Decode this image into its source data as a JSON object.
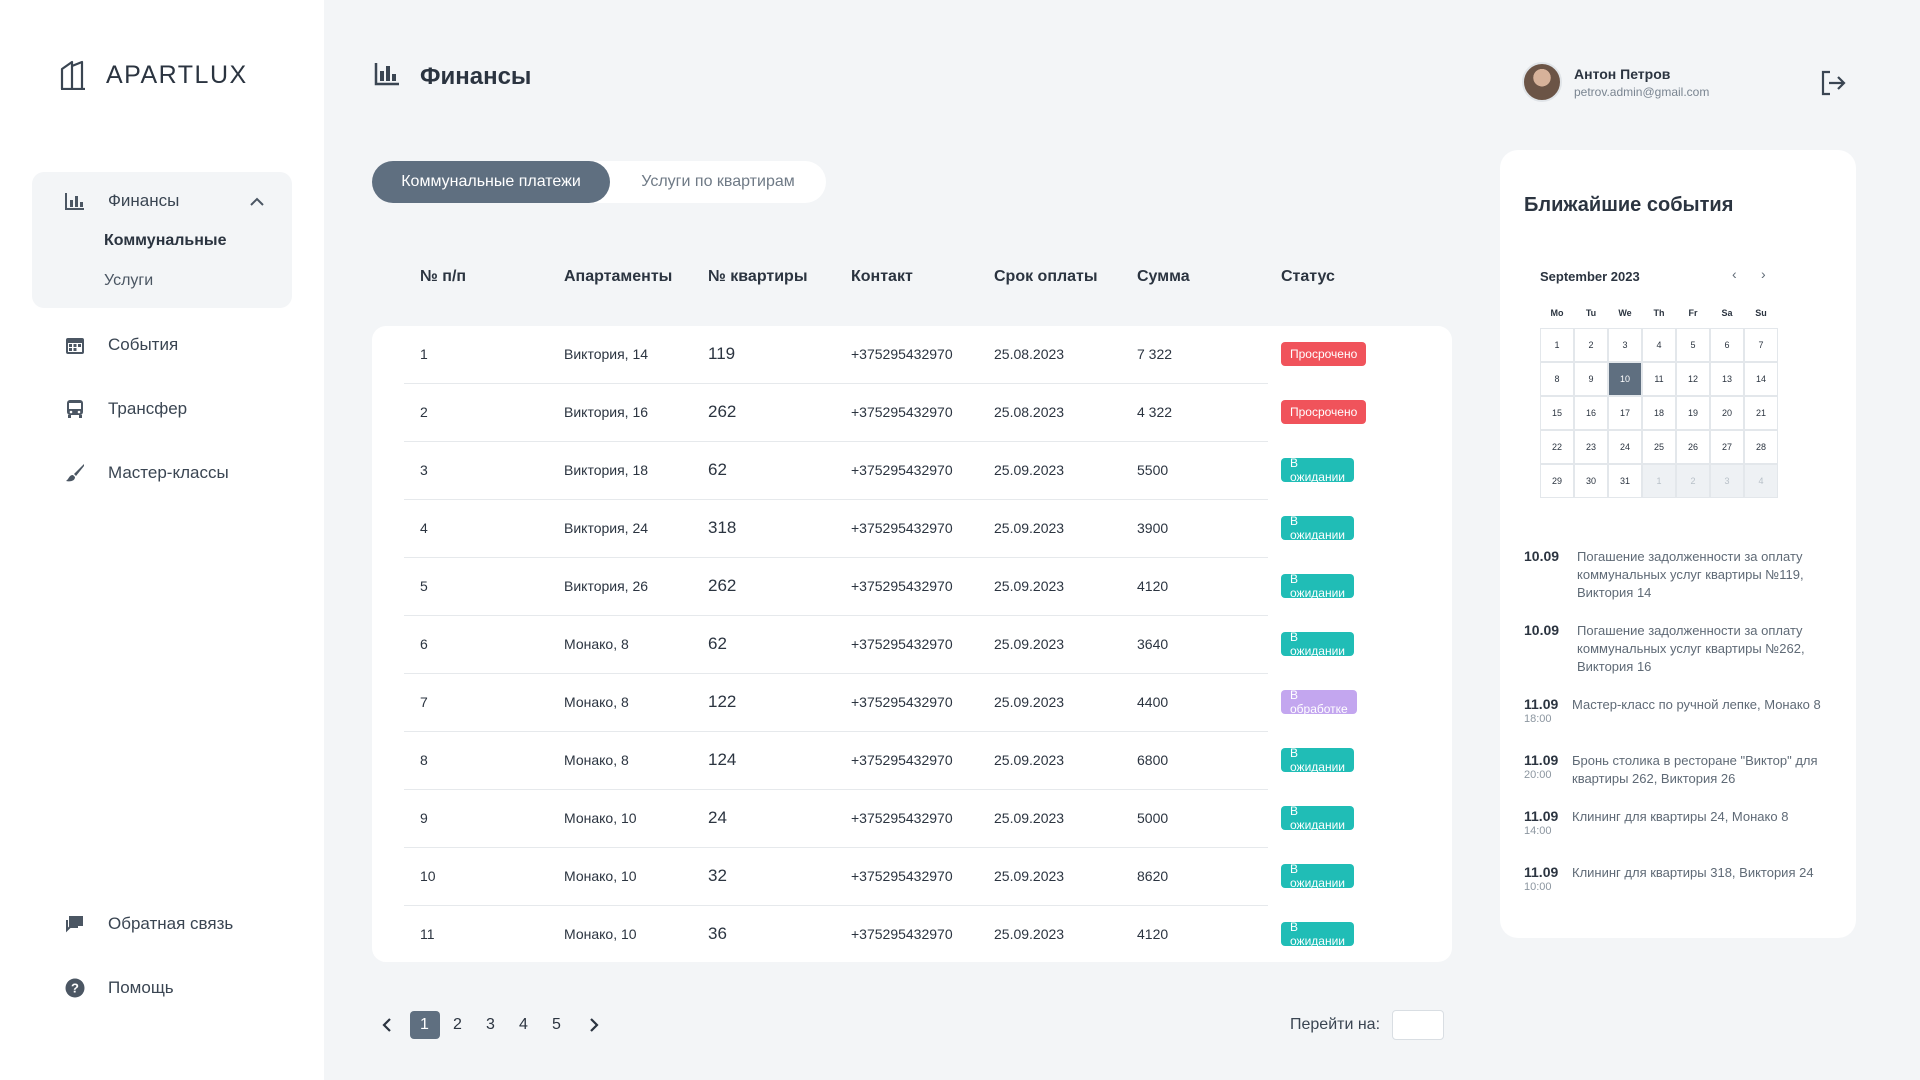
{
  "app": {
    "logo_text": "APARTLUX"
  },
  "sidebar": {
    "finance": {
      "label": "Финансы",
      "icon": "bar-chart-icon"
    },
    "finance_sub": [
      {
        "label": "Коммунальные",
        "active": true
      },
      {
        "label": "Услуги",
        "active": false
      }
    ],
    "items": [
      {
        "label": "События",
        "icon": "calendar-icon"
      },
      {
        "label": "Трансфер",
        "icon": "bus-icon"
      },
      {
        "label": "Мастер-классы",
        "icon": "brush-icon"
      }
    ],
    "bottom": [
      {
        "label": "Обратная связь",
        "icon": "chat-icon"
      },
      {
        "label": "Помощь",
        "icon": "help-icon"
      }
    ]
  },
  "header": {
    "title": "Финансы",
    "user_name": "Антон Петров",
    "user_email": "petrov.admin@gmail.com"
  },
  "tabs": [
    {
      "label": "Коммунальные платежи",
      "active": true
    },
    {
      "label": "Услуги по квартирам",
      "active": false
    }
  ],
  "table": {
    "headers": [
      "№ п/п",
      "Апартаменты",
      "№ квартиры",
      "Контакт",
      "Срок оплаты",
      "Сумма",
      "Статус"
    ],
    "rows": [
      {
        "n": "1",
        "apt": "Виктория, 14",
        "flat": "119",
        "contact": "+375295432970",
        "due": "25.08.2023",
        "sum": "7 322",
        "status": "Просрочено",
        "status_color": "#f0535b"
      },
      {
        "n": "2",
        "apt": "Виктория, 16",
        "flat": "262",
        "contact": "+375295432970",
        "due": "25.08.2023",
        "sum": "4 322",
        "status": "Просрочено",
        "status_color": "#f0535b"
      },
      {
        "n": "3",
        "apt": "Виктория, 18",
        "flat": "62",
        "contact": "+375295432970",
        "due": "25.09.2023",
        "sum": "5500",
        "status": "В ожидании",
        "status_color": "#20bdb6"
      },
      {
        "n": "4",
        "apt": "Виктория, 24",
        "flat": "318",
        "contact": "+375295432970",
        "due": "25.09.2023",
        "sum": "3900",
        "status": "В ожидании",
        "status_color": "#20bdb6"
      },
      {
        "n": "5",
        "apt": "Виктория, 26",
        "flat": "262",
        "contact": "+375295432970",
        "due": "25.09.2023",
        "sum": "4120",
        "status": "В ожидании",
        "status_color": "#20bdb6"
      },
      {
        "n": "6",
        "apt": "Монако, 8",
        "flat": "62",
        "contact": "+375295432970",
        "due": "25.09.2023",
        "sum": "3640",
        "status": "В ожидании",
        "status_color": "#20bdb6"
      },
      {
        "n": "7",
        "apt": "Монако, 8",
        "flat": "122",
        "contact": "+375295432970",
        "due": "25.09.2023",
        "sum": "4400",
        "status": "В обработке",
        "status_color": "#c3a6ef"
      },
      {
        "n": "8",
        "apt": "Монако, 8",
        "flat": "124",
        "contact": "+375295432970",
        "due": "25.09.2023",
        "sum": "6800",
        "status": "В ожидании",
        "status_color": "#20bdb6"
      },
      {
        "n": "9",
        "apt": "Монако, 10",
        "flat": "24",
        "contact": "+375295432970",
        "due": "25.09.2023",
        "sum": "5000",
        "status": "В ожидании",
        "status_color": "#20bdb6"
      },
      {
        "n": "10",
        "apt": "Монако, 10",
        "flat": "32",
        "contact": "+375295432970",
        "due": "25.09.2023",
        "sum": "8620",
        "status": "В ожидании",
        "status_color": "#20bdb6"
      },
      {
        "n": "11",
        "apt": "Монако, 10",
        "flat": "36",
        "contact": "+375295432970",
        "due": "25.09.2023",
        "sum": "4120",
        "status": "В ожидании",
        "status_color": "#20bdb6"
      }
    ]
  },
  "pagination": {
    "pages": [
      "1",
      "2",
      "3",
      "4",
      "5"
    ],
    "current": "1",
    "goto_label": "Перейти на:",
    "goto_value": ""
  },
  "events": {
    "title": "Ближайшие события",
    "calendar": {
      "month": "September 2023",
      "weekdays": [
        "Mo",
        "Tu",
        "We",
        "Th",
        "Fr",
        "Sa",
        "Su"
      ],
      "days": [
        "1",
        "2",
        "3",
        "4",
        "5",
        "6",
        "7",
        "8",
        "9",
        "10",
        "11",
        "12",
        "13",
        "14",
        "15",
        "16",
        "17",
        "18",
        "19",
        "20",
        "21",
        "22",
        "23",
        "24",
        "25",
        "26",
        "27",
        "28",
        "29",
        "30",
        "31",
        "1",
        "2",
        "3",
        "4"
      ],
      "selected": "10",
      "trailing_out_count": 4
    },
    "items": [
      {
        "date": "10.09",
        "time": "",
        "text": "Погашение задолженности за оплату коммунальных услуг квартиры №119, Виктория 14"
      },
      {
        "date": "10.09",
        "time": "",
        "text": "Погашение задолженности за оплату коммунальных услуг квартиры №262, Виктория 16"
      },
      {
        "date": "11.09",
        "time": "18:00",
        "text": "Мастер-класс по ручной лепке, Монако 8"
      },
      {
        "date": "11.09",
        "time": "20:00",
        "text": "Бронь столика в ресторане \"Виктор\" для квартиры 262, Виктория 26"
      },
      {
        "date": "11.09",
        "time": "14:00",
        "text": "Клининг для квартиры 24, Монако 8"
      },
      {
        "date": "11.09",
        "time": "10:00",
        "text": "Клининг для квартиры 318, Виктория 24"
      }
    ]
  }
}
